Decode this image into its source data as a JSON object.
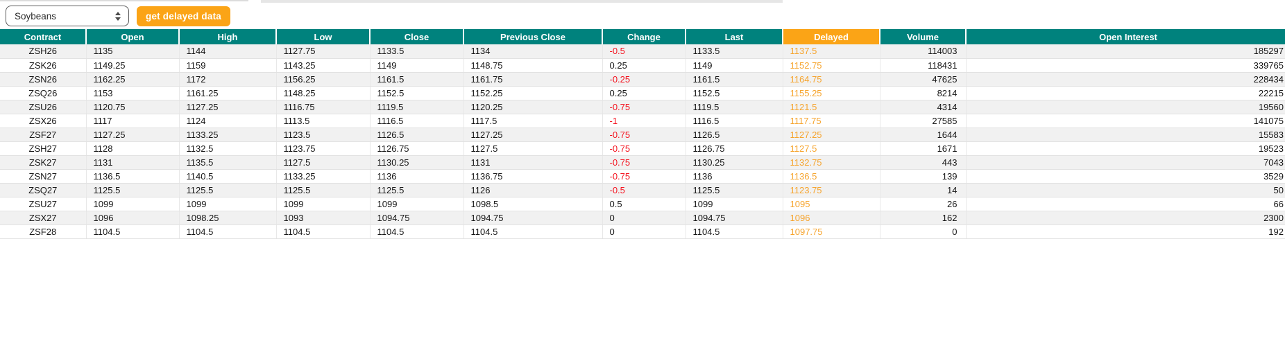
{
  "toolbar": {
    "commodity_select": {
      "value": "Soybeans"
    },
    "button_label": "get delayed data"
  },
  "colors": {
    "header_teal": "#00827d",
    "accent_orange": "#fba416",
    "delayed_text_orange": "#f6a42d",
    "negative_red": "#f4121e"
  },
  "table": {
    "columns": [
      {
        "key": "contract",
        "label": "Contract",
        "align": "center"
      },
      {
        "key": "open",
        "label": "Open",
        "align": "left"
      },
      {
        "key": "high",
        "label": "High",
        "align": "left"
      },
      {
        "key": "low",
        "label": "Low",
        "align": "left"
      },
      {
        "key": "close",
        "label": "Close",
        "align": "left"
      },
      {
        "key": "previous_close",
        "label": "Previous Close",
        "align": "left"
      },
      {
        "key": "change",
        "label": "Change",
        "align": "left"
      },
      {
        "key": "last",
        "label": "Last",
        "align": "left"
      },
      {
        "key": "delayed",
        "label": "Delayed",
        "align": "left",
        "highlight": true
      },
      {
        "key": "volume",
        "label": "Volume",
        "align": "right"
      },
      {
        "key": "open_interest",
        "label": "Open Interest",
        "align": "right"
      }
    ],
    "rows": [
      {
        "contract": "ZSH26",
        "open": "1135",
        "high": "1144",
        "low": "1127.75",
        "close": "1133.5",
        "previous_close": "1134",
        "change": "-0.5",
        "last": "1133.5",
        "delayed": "1137.5",
        "volume": "114003",
        "open_interest": "185297"
      },
      {
        "contract": "ZSK26",
        "open": "1149.25",
        "high": "1159",
        "low": "1143.25",
        "close": "1149",
        "previous_close": "1148.75",
        "change": "0.25",
        "last": "1149",
        "delayed": "1152.75",
        "volume": "118431",
        "open_interest": "339765"
      },
      {
        "contract": "ZSN26",
        "open": "1162.25",
        "high": "1172",
        "low": "1156.25",
        "close": "1161.5",
        "previous_close": "1161.75",
        "change": "-0.25",
        "last": "1161.5",
        "delayed": "1164.75",
        "volume": "47625",
        "open_interest": "228434"
      },
      {
        "contract": "ZSQ26",
        "open": "1153",
        "high": "1161.25",
        "low": "1148.25",
        "close": "1152.5",
        "previous_close": "1152.25",
        "change": "0.25",
        "last": "1152.5",
        "delayed": "1155.25",
        "volume": "8214",
        "open_interest": "22215"
      },
      {
        "contract": "ZSU26",
        "open": "1120.75",
        "high": "1127.25",
        "low": "1116.75",
        "close": "1119.5",
        "previous_close": "1120.25",
        "change": "-0.75",
        "last": "1119.5",
        "delayed": "1121.5",
        "volume": "4314",
        "open_interest": "19560"
      },
      {
        "contract": "ZSX26",
        "open": "1117",
        "high": "1124",
        "low": "1113.5",
        "close": "1116.5",
        "previous_close": "1117.5",
        "change": "-1",
        "last": "1116.5",
        "delayed": "1117.75",
        "volume": "27585",
        "open_interest": "141075"
      },
      {
        "contract": "ZSF27",
        "open": "1127.25",
        "high": "1133.25",
        "low": "1123.5",
        "close": "1126.5",
        "previous_close": "1127.25",
        "change": "-0.75",
        "last": "1126.5",
        "delayed": "1127.25",
        "volume": "1644",
        "open_interest": "15583"
      },
      {
        "contract": "ZSH27",
        "open": "1128",
        "high": "1132.5",
        "low": "1123.75",
        "close": "1126.75",
        "previous_close": "1127.5",
        "change": "-0.75",
        "last": "1126.75",
        "delayed": "1127.5",
        "volume": "1671",
        "open_interest": "19523"
      },
      {
        "contract": "ZSK27",
        "open": "1131",
        "high": "1135.5",
        "low": "1127.5",
        "close": "1130.25",
        "previous_close": "1131",
        "change": "-0.75",
        "last": "1130.25",
        "delayed": "1132.75",
        "volume": "443",
        "open_interest": "7043"
      },
      {
        "contract": "ZSN27",
        "open": "1136.5",
        "high": "1140.5",
        "low": "1133.25",
        "close": "1136",
        "previous_close": "1136.75",
        "change": "-0.75",
        "last": "1136",
        "delayed": "1136.5",
        "volume": "139",
        "open_interest": "3529"
      },
      {
        "contract": "ZSQ27",
        "open": "1125.5",
        "high": "1125.5",
        "low": "1125.5",
        "close": "1125.5",
        "previous_close": "1126",
        "change": "-0.5",
        "last": "1125.5",
        "delayed": "1123.75",
        "volume": "14",
        "open_interest": "50"
      },
      {
        "contract": "ZSU27",
        "open": "1099",
        "high": "1099",
        "low": "1099",
        "close": "1099",
        "previous_close": "1098.5",
        "change": "0.5",
        "last": "1099",
        "delayed": "1095",
        "volume": "26",
        "open_interest": "66"
      },
      {
        "contract": "ZSX27",
        "open": "1096",
        "high": "1098.25",
        "low": "1093",
        "close": "1094.75",
        "previous_close": "1094.75",
        "change": "0",
        "last": "1094.75",
        "delayed": "1096",
        "volume": "162",
        "open_interest": "2300"
      },
      {
        "contract": "ZSF28",
        "open": "1104.5",
        "high": "1104.5",
        "low": "1104.5",
        "close": "1104.5",
        "previous_close": "1104.5",
        "change": "0",
        "last": "1104.5",
        "delayed": "1097.75",
        "volume": "0",
        "open_interest": "192"
      }
    ]
  }
}
